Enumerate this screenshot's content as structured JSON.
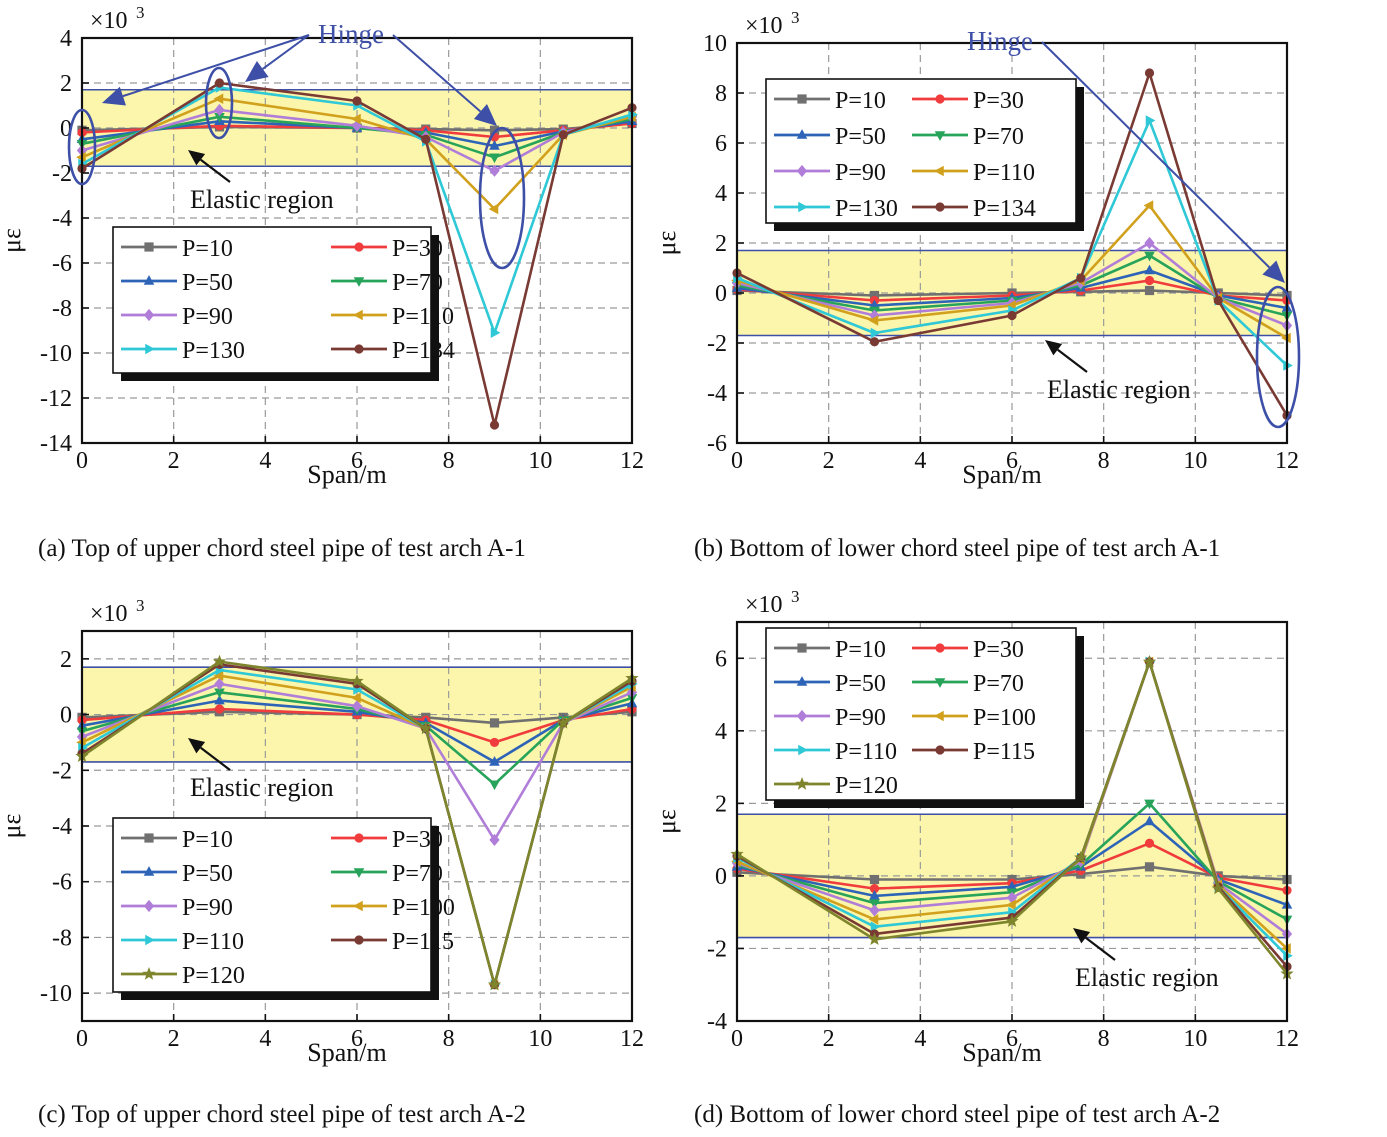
{
  "colors": {
    "series": [
      "#707070",
      "#f03c3c",
      "#2e64b8",
      "#27a35a",
      "#b07ed8",
      "#d1a01c",
      "#2fc8d6",
      "#7a3a34",
      "#7f852d"
    ],
    "elastic_fill": "#fbf6ab",
    "boundary_line": "#3d4fa6",
    "annotation": "#3d4fa6",
    "grid": "#9a9a9a"
  },
  "chart_data": [
    {
      "panel": "a",
      "type": "line",
      "caption": "(a) Top of upper chord steel pipe of test arch A-1",
      "xlabel": "Span/m",
      "ylabel": "με",
      "exponent_label": "×10",
      "exponent_power": "3",
      "x": [
        0,
        3,
        6,
        7.5,
        9,
        10.5,
        12
      ],
      "xlim": [
        0,
        12
      ],
      "ylim": [
        -14,
        4
      ],
      "xticks": [
        0,
        2,
        4,
        6,
        8,
        10,
        12
      ],
      "xtick_labels": [
        "0",
        "2",
        "4",
        "6",
        "8",
        "10",
        "12"
      ],
      "yticks": [
        -14,
        -12,
        -10,
        -8,
        -6,
        -4,
        -2,
        0,
        2,
        4
      ],
      "ytick_labels": [
        "-14",
        "-12",
        "-10",
        "-8",
        "-6",
        "-4",
        "-2",
        "0",
        "2",
        "4"
      ],
      "elastic_band": [
        -1.7,
        1.7
      ],
      "elastic_label": "Elastic region",
      "hinge_label": "Hinge",
      "legend_columns": 2,
      "series": [
        {
          "name": "P=10",
          "marker": "square",
          "values": [
            -0.1,
            0.05,
            0.0,
            -0.05,
            -0.1,
            -0.05,
            0.2
          ]
        },
        {
          "name": "P=30",
          "marker": "circle",
          "values": [
            -0.2,
            0.1,
            0.0,
            -0.1,
            -0.4,
            -0.1,
            0.2
          ]
        },
        {
          "name": "P=50",
          "marker": "triangle-up",
          "values": [
            -0.5,
            0.3,
            0.0,
            -0.2,
            -0.8,
            -0.15,
            0.3
          ]
        },
        {
          "name": "P=70",
          "marker": "triangle-down",
          "values": [
            -0.7,
            0.5,
            0.0,
            -0.3,
            -1.3,
            -0.2,
            0.4
          ]
        },
        {
          "name": "P=90",
          "marker": "diamond",
          "values": [
            -1.0,
            0.8,
            0.1,
            -0.4,
            -1.9,
            -0.2,
            0.5
          ]
        },
        {
          "name": "P=110",
          "marker": "triangle-left",
          "values": [
            -1.3,
            1.3,
            0.4,
            -0.5,
            -3.6,
            -0.3,
            0.5
          ]
        },
        {
          "name": "P=130",
          "marker": "triangle-right",
          "values": [
            -1.6,
            1.8,
            1.0,
            -0.6,
            -9.1,
            -0.3,
            0.6
          ]
        },
        {
          "name": "P=134",
          "marker": "circle",
          "values": [
            -1.8,
            2.0,
            1.2,
            -0.5,
            -13.2,
            -0.3,
            0.9
          ]
        }
      ]
    },
    {
      "panel": "b",
      "type": "line",
      "caption": "(b) Bottom of lower chord steel pipe of test arch A-1",
      "xlabel": "Span/m",
      "ylabel": "με",
      "exponent_label": "×10",
      "exponent_power": "3",
      "x": [
        0,
        3,
        6,
        7.5,
        9,
        10.5,
        12
      ],
      "xlim": [
        0,
        12
      ],
      "ylim": [
        -6,
        10
      ],
      "xticks": [
        0,
        2,
        4,
        6,
        8,
        10,
        12
      ],
      "xtick_labels": [
        "0",
        "2",
        "4",
        "6",
        "8",
        "10",
        "12"
      ],
      "yticks": [
        -6,
        -4,
        -2,
        0,
        2,
        4,
        6,
        8,
        10
      ],
      "ytick_labels": [
        "-6",
        "-4",
        "-2",
        "0",
        "2",
        "4",
        "6",
        "8",
        "10"
      ],
      "elastic_band": [
        -1.7,
        1.7
      ],
      "elastic_label": "Elastic region",
      "hinge_label": "Hinge",
      "legend_columns": 2,
      "series": [
        {
          "name": "P=10",
          "marker": "square",
          "values": [
            0.1,
            -0.1,
            0.0,
            0.05,
            0.1,
            0.0,
            -0.1
          ]
        },
        {
          "name": "P=30",
          "marker": "circle",
          "values": [
            0.15,
            -0.3,
            -0.1,
            0.1,
            0.5,
            -0.1,
            -0.3
          ]
        },
        {
          "name": "P=50",
          "marker": "triangle-up",
          "values": [
            0.2,
            -0.5,
            -0.2,
            0.2,
            0.9,
            -0.1,
            -0.6
          ]
        },
        {
          "name": "P=70",
          "marker": "triangle-down",
          "values": [
            0.3,
            -0.7,
            -0.3,
            0.3,
            1.5,
            -0.2,
            -0.9
          ]
        },
        {
          "name": "P=90",
          "marker": "diamond",
          "values": [
            0.4,
            -0.9,
            -0.4,
            0.4,
            2.0,
            -0.2,
            -1.3
          ]
        },
        {
          "name": "P=110",
          "marker": "triangle-left",
          "values": [
            0.5,
            -1.1,
            -0.5,
            0.5,
            3.5,
            -0.2,
            -1.8
          ]
        },
        {
          "name": "P=130",
          "marker": "triangle-right",
          "values": [
            0.6,
            -1.6,
            -0.7,
            0.6,
            6.9,
            -0.3,
            -2.9
          ]
        },
        {
          "name": "P=134",
          "marker": "circle",
          "values": [
            0.8,
            -1.95,
            -0.9,
            0.6,
            8.8,
            -0.3,
            -4.9
          ]
        }
      ]
    },
    {
      "panel": "c",
      "type": "line",
      "caption": "(c) Top of upper chord steel pipe of test arch A-2",
      "xlabel": "Span/m",
      "ylabel": "με",
      "exponent_label": "×10",
      "exponent_power": "3",
      "x": [
        0,
        3,
        6,
        7.5,
        9,
        10.5,
        12
      ],
      "xlim": [
        0,
        12
      ],
      "ylim": [
        -11,
        3
      ],
      "xticks": [
        0,
        2,
        4,
        6,
        8,
        10,
        12
      ],
      "xtick_labels": [
        "0",
        "2",
        "4",
        "6",
        "8",
        "10",
        "12"
      ],
      "yticks": [
        -10,
        -8,
        -6,
        -4,
        -2,
        0,
        2
      ],
      "ytick_labels": [
        "-10",
        "-8",
        "-6",
        "-4",
        "-2",
        "0",
        "2"
      ],
      "elastic_band": [
        -1.7,
        1.7
      ],
      "elastic_label": "Elastic region",
      "legend_columns": 2,
      "series": [
        {
          "name": "P=10",
          "marker": "square",
          "values": [
            -0.1,
            0.1,
            0.0,
            -0.1,
            -0.3,
            -0.1,
            0.1
          ]
        },
        {
          "name": "P=30",
          "marker": "circle",
          "values": [
            -0.2,
            0.2,
            0.0,
            -0.2,
            -1.0,
            -0.2,
            0.2
          ]
        },
        {
          "name": "P=50",
          "marker": "triangle-up",
          "values": [
            -0.4,
            0.5,
            0.1,
            -0.3,
            -1.7,
            -0.2,
            0.4
          ]
        },
        {
          "name": "P=70",
          "marker": "triangle-down",
          "values": [
            -0.6,
            0.8,
            0.2,
            -0.4,
            -2.5,
            -0.2,
            0.6
          ]
        },
        {
          "name": "P=90",
          "marker": "diamond",
          "values": [
            -0.8,
            1.1,
            0.3,
            -0.5,
            -4.5,
            -0.3,
            0.8
          ]
        },
        {
          "name": "P=100",
          "marker": "triangle-left",
          "values": [
            -1.0,
            1.4,
            0.6,
            -0.5,
            -9.7,
            -0.3,
            1.0
          ]
        },
        {
          "name": "P=110",
          "marker": "triangle-right",
          "values": [
            -1.2,
            1.6,
            0.9,
            -0.5,
            -9.7,
            -0.3,
            1.1
          ]
        },
        {
          "name": "P=115",
          "marker": "circle",
          "values": [
            -1.4,
            1.8,
            1.1,
            -0.5,
            -9.7,
            -0.3,
            1.2
          ]
        },
        {
          "name": "P=120",
          "marker": "star",
          "values": [
            -1.5,
            1.9,
            1.2,
            -0.5,
            -9.7,
            -0.3,
            1.3
          ]
        }
      ]
    },
    {
      "panel": "d",
      "type": "line",
      "caption": "(d) Bottom of lower chord steel pipe of test arch A-2",
      "xlabel": "Span/m",
      "ylabel": "με",
      "exponent_label": "×10",
      "exponent_power": "3",
      "x": [
        0,
        3,
        6,
        7.5,
        9,
        10.5,
        12
      ],
      "xlim": [
        0,
        12
      ],
      "ylim": [
        -4,
        7
      ],
      "xticks": [
        0,
        2,
        4,
        6,
        8,
        10,
        12
      ],
      "xtick_labels": [
        "0",
        "2",
        "4",
        "6",
        "8",
        "10",
        "12"
      ],
      "yticks": [
        -4,
        -2,
        0,
        2,
        4,
        6
      ],
      "ytick_labels": [
        "-4",
        "-2",
        "0",
        "2",
        "4",
        "6"
      ],
      "elastic_band": [
        -1.7,
        1.7
      ],
      "elastic_label": "Elastic region",
      "legend_columns": 2,
      "series": [
        {
          "name": "P=10",
          "marker": "square",
          "values": [
            0.1,
            -0.1,
            -0.1,
            0.05,
            0.25,
            0.0,
            -0.1
          ]
        },
        {
          "name": "P=30",
          "marker": "circle",
          "values": [
            0.2,
            -0.35,
            -0.2,
            0.15,
            0.9,
            -0.05,
            -0.4
          ]
        },
        {
          "name": "P=50",
          "marker": "triangle-up",
          "values": [
            0.25,
            -0.55,
            -0.3,
            0.25,
            1.5,
            -0.1,
            -0.8
          ]
        },
        {
          "name": "P=70",
          "marker": "triangle-down",
          "values": [
            0.3,
            -0.75,
            -0.45,
            0.3,
            2.0,
            -0.15,
            -1.2
          ]
        },
        {
          "name": "P=90",
          "marker": "diamond",
          "values": [
            0.35,
            -0.95,
            -0.6,
            0.4,
            5.9,
            -0.2,
            -1.6
          ]
        },
        {
          "name": "P=100",
          "marker": "triangle-left",
          "values": [
            0.4,
            -1.2,
            -0.8,
            0.45,
            5.9,
            -0.25,
            -2.0
          ]
        },
        {
          "name": "P=110",
          "marker": "triangle-right",
          "values": [
            0.5,
            -1.4,
            -1.0,
            0.5,
            5.9,
            -0.3,
            -2.2
          ]
        },
        {
          "name": "P=115",
          "marker": "circle",
          "values": [
            0.55,
            -1.6,
            -1.15,
            0.5,
            5.9,
            -0.3,
            -2.5
          ]
        },
        {
          "name": "P=120",
          "marker": "star",
          "values": [
            0.6,
            -1.75,
            -1.25,
            0.5,
            5.9,
            -0.35,
            -2.7
          ]
        }
      ]
    }
  ]
}
